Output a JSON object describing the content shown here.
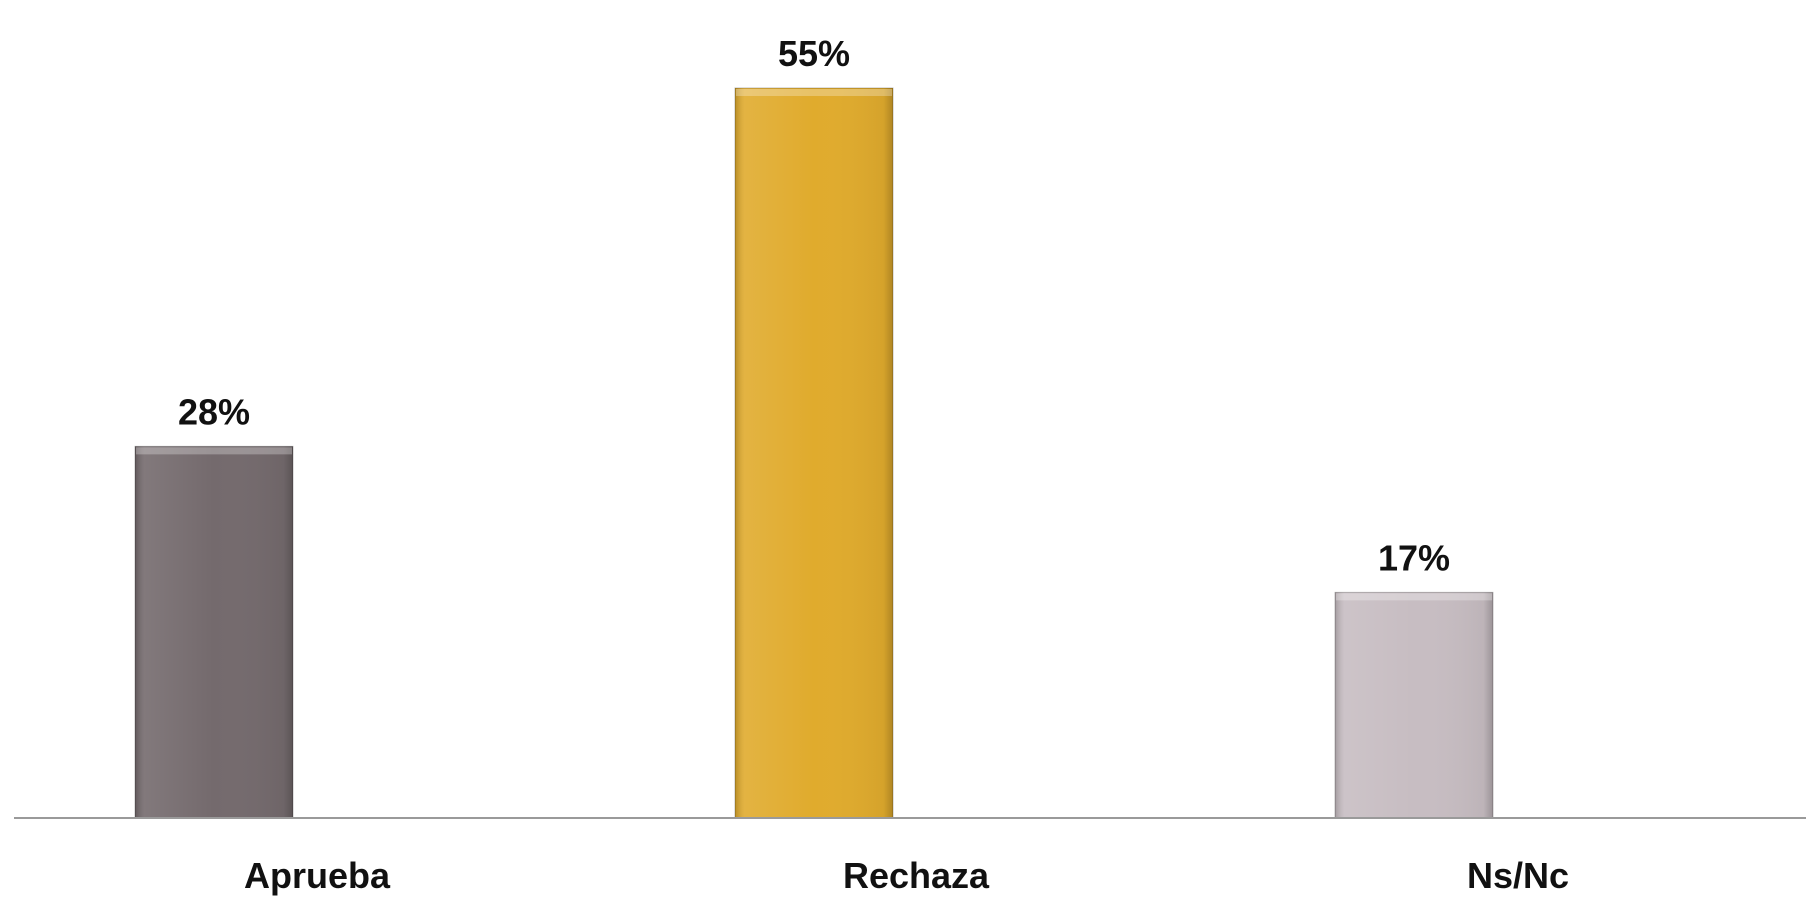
{
  "chart_data": {
    "type": "bar",
    "categories": [
      "Aprueba",
      "Rechaza",
      "Ns/Nc"
    ],
    "values": [
      28,
      55,
      17
    ],
    "value_labels": [
      "28%",
      "55%",
      "17%"
    ],
    "colors": [
      "#746A6D",
      "#E0AB2D",
      "#C7BDC2"
    ],
    "title": "",
    "xlabel": "",
    "ylabel": "",
    "ylim": [
      0,
      55
    ],
    "grid": false,
    "legend": "none"
  }
}
